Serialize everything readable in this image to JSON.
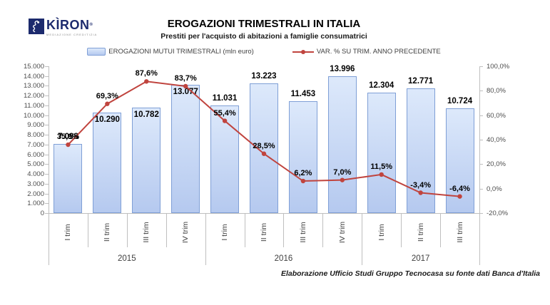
{
  "logo": {
    "name": "KÌRON",
    "registered": "®",
    "tagline": "MEDIAZIONE CREDITIZIA"
  },
  "header": {
    "title": "EROGAZIONI TRIMESTRALI IN ITALIA",
    "subtitle": "Prestiti per l'acquisto di abitazioni a famiglie consumatrici"
  },
  "legend": {
    "bars_label": "EROGAZIONI MUTUI TRIMESTRALI (mln euro)",
    "line_label": "VAR. % SU TRIM. ANNO PRECEDENTE"
  },
  "footer": {
    "source": "Elaborazione Ufficio Studi Gruppo Tecnocasa su fonte dati Banca d'Italia"
  },
  "chart_data": {
    "type": "combo-bar-line",
    "categories": [
      "I trim",
      "II trim",
      "III trim",
      "IV trim",
      "I trim",
      "II trim",
      "III trim",
      "IV trim",
      "I trim",
      "II trim",
      "III trim"
    ],
    "year_groups": [
      {
        "label": "2015",
        "count": 4
      },
      {
        "label": "2016",
        "count": 4
      },
      {
        "label": "2017",
        "count": 3
      }
    ],
    "series": [
      {
        "name": "EROGAZIONI MUTUI TRIMESTRALI (mln euro)",
        "type": "bar",
        "axis": "left",
        "values": [
          7098,
          10290,
          10782,
          13077,
          11031,
          13223,
          11453,
          13996,
          12304,
          12771,
          10724
        ],
        "labels": [
          "7.098",
          "10.290",
          "10.782",
          "13.077",
          "11.031",
          "13.223",
          "11.453",
          "13.996",
          "12.304",
          "12.771",
          "10.724"
        ],
        "label_inside": [
          false,
          true,
          true,
          true,
          false,
          false,
          false,
          false,
          false,
          false,
          false
        ]
      },
      {
        "name": "VAR. % SU TRIM. ANNO PRECEDENTE",
        "type": "line",
        "axis": "right",
        "values": [
          35.9,
          69.3,
          87.6,
          83.7,
          55.4,
          28.5,
          6.2,
          7.0,
          11.5,
          -3.4,
          -6.4
        ],
        "labels": [
          "35,9%",
          "69,3%",
          "87,6%",
          "83,7%",
          "55,4%",
          "28,5%",
          "6,2%",
          "7,0%",
          "11,5%",
          "-3,4%",
          "-6,4%"
        ]
      }
    ],
    "left_axis": {
      "min": 0,
      "max": 15000,
      "step": 1000,
      "ticks": [
        "15.000",
        "14.000",
        "13.000",
        "12.000",
        "11.000",
        "10.000",
        "9.000",
        "8.000",
        "7.000",
        "6.000",
        "5.000",
        "4.000",
        "3.000",
        "2.000",
        "1.000",
        "0"
      ]
    },
    "right_axis": {
      "min": -20,
      "max": 100,
      "step": 20,
      "ticks": [
        "100,0%",
        "80,0%",
        "60,0%",
        "40,0%",
        "20,0%",
        "0,0%",
        "-20,0%"
      ]
    },
    "colors": {
      "bar_fill_top": "#dde9fb",
      "bar_fill_bottom": "#b5c9ef",
      "bar_border": "#7f9fd6",
      "line": "#c0443e",
      "axis": "#bfbfbf"
    },
    "grid": false,
    "legend_position": "top"
  }
}
